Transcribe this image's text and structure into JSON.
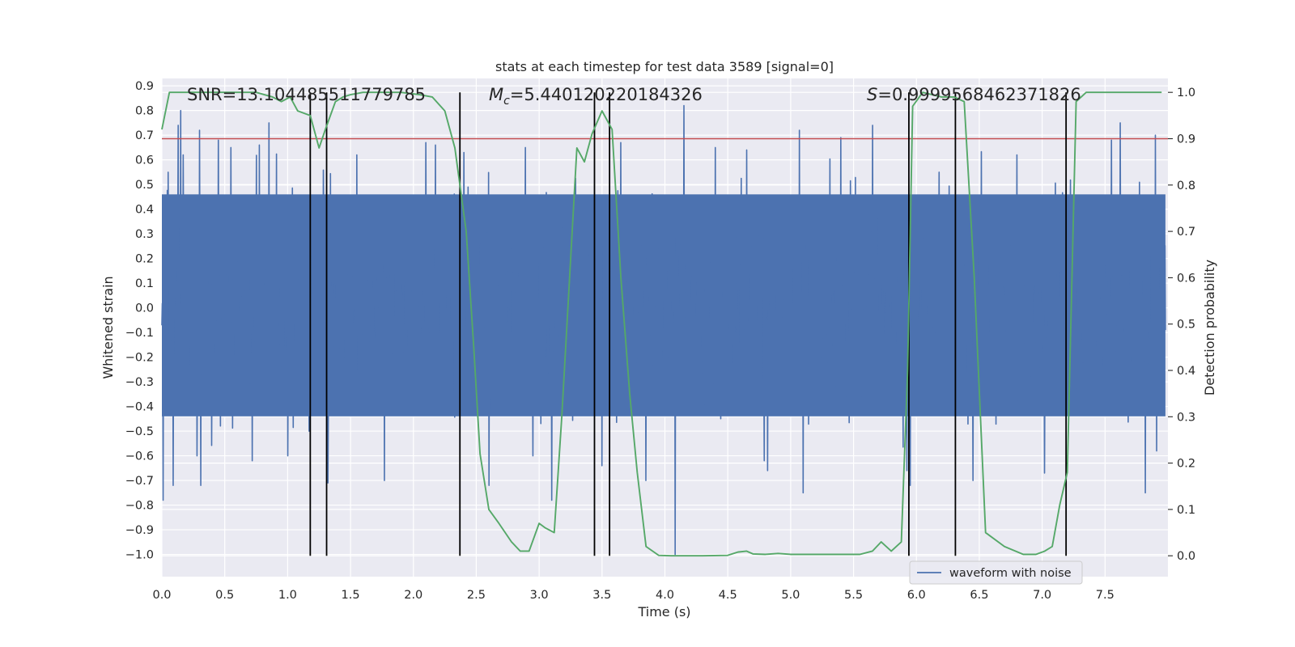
{
  "chart_data": {
    "type": "line",
    "title": "stats at each timestep for test data 3589 [signal=0]",
    "xlabel": "Time (s)",
    "ylabel": "Whitened strain",
    "y2label": "Detection probability",
    "xlim": [
      0.0,
      8.0
    ],
    "ylim": [
      -1.09,
      0.93
    ],
    "y2lim": [
      -0.045,
      1.03
    ],
    "xticks": [
      "0.0",
      "0.5",
      "1.0",
      "1.5",
      "2.0",
      "2.5",
      "3.0",
      "3.5",
      "4.0",
      "4.5",
      "5.0",
      "5.5",
      "6.0",
      "6.5",
      "7.0",
      "7.5"
    ],
    "yticks": [
      "0.9",
      "0.8",
      "0.7",
      "0.6",
      "0.5",
      "0.4",
      "0.3",
      "0.2",
      "0.1",
      "0.0",
      "−0.1",
      "−0.2",
      "−0.3",
      "−0.4",
      "−0.5",
      "−0.6",
      "−0.7",
      "−0.8",
      "−0.9",
      "−1.0"
    ],
    "y2ticks": [
      "1.0",
      "0.9",
      "0.8",
      "0.7",
      "0.6",
      "0.5",
      "0.4",
      "0.3",
      "0.2",
      "0.1",
      "0.0"
    ],
    "annotations": {
      "snr": "SNR=13.104485511779785",
      "mc_prefix": "M",
      "mc_sub": "c",
      "mc_value": "=5.440120220184326",
      "s_prefix": "S",
      "s_value": "=0.9999568462371826"
    },
    "threshold": 0.9,
    "vertical_lines": [
      1.18,
      1.31,
      2.37,
      3.44,
      3.56,
      5.94,
      6.31,
      7.19
    ],
    "waveform": {
      "name": "waveform with noise",
      "color": "#4c72b0",
      "n_samples": 2400,
      "dense_band": [
        -0.44,
        0.46
      ],
      "spikes": [
        {
          "t": 0.01,
          "v": -0.78
        },
        {
          "t": 0.05,
          "v": 0.55
        },
        {
          "t": 0.09,
          "v": -0.72
        },
        {
          "t": 0.13,
          "v": 0.74
        },
        {
          "t": 0.15,
          "v": 0.8
        },
        {
          "t": 0.17,
          "v": 0.62
        },
        {
          "t": 0.28,
          "v": -0.6
        },
        {
          "t": 0.3,
          "v": 0.72
        },
        {
          "t": 0.31,
          "v": -0.72
        },
        {
          "t": 0.45,
          "v": 0.68
        },
        {
          "t": 0.55,
          "v": 0.65
        },
        {
          "t": 0.72,
          "v": -0.62
        },
        {
          "t": 0.85,
          "v": 0.75
        },
        {
          "t": 1.0,
          "v": -0.6
        },
        {
          "t": 1.17,
          "v": -0.5
        },
        {
          "t": 1.32,
          "v": -0.71
        },
        {
          "t": 1.55,
          "v": 0.62
        },
        {
          "t": 1.77,
          "v": -0.7
        },
        {
          "t": 2.1,
          "v": 0.67
        },
        {
          "t": 2.4,
          "v": 0.63
        },
        {
          "t": 2.6,
          "v": -0.72
        },
        {
          "t": 2.89,
          "v": 0.65
        },
        {
          "t": 2.95,
          "v": -0.6
        },
        {
          "t": 3.1,
          "v": -0.78
        },
        {
          "t": 3.5,
          "v": -0.64
        },
        {
          "t": 3.65,
          "v": 0.67
        },
        {
          "t": 3.85,
          "v": -0.7
        },
        {
          "t": 4.08,
          "v": -1.0
        },
        {
          "t": 4.15,
          "v": 0.82
        },
        {
          "t": 4.4,
          "v": 0.65
        },
        {
          "t": 4.65,
          "v": 0.64
        },
        {
          "t": 4.79,
          "v": -0.62
        },
        {
          "t": 5.07,
          "v": 0.72
        },
        {
          "t": 5.1,
          "v": -0.75
        },
        {
          "t": 5.4,
          "v": 0.69
        },
        {
          "t": 5.65,
          "v": 0.74
        },
        {
          "t": 5.95,
          "v": -0.72
        },
        {
          "t": 6.18,
          "v": 0.55
        },
        {
          "t": 6.45,
          "v": -0.7
        },
        {
          "t": 6.8,
          "v": 0.62
        },
        {
          "t": 7.02,
          "v": -0.67
        },
        {
          "t": 7.55,
          "v": 0.68
        },
        {
          "t": 7.62,
          "v": 0.75
        },
        {
          "t": 7.82,
          "v": -0.75
        },
        {
          "t": 7.9,
          "v": 0.7
        }
      ]
    },
    "probability": {
      "color": "#55a868",
      "x": [
        0.0,
        0.06,
        0.2,
        0.4,
        0.6,
        0.75,
        0.88,
        0.95,
        1.02,
        1.08,
        1.18,
        1.25,
        1.3,
        1.38,
        1.44,
        1.5,
        1.6,
        1.75,
        1.9,
        2.05,
        2.15,
        2.25,
        2.33,
        2.42,
        2.48,
        2.53,
        2.6,
        2.68,
        2.78,
        2.85,
        2.92,
        3.0,
        3.05,
        3.12,
        3.18,
        3.3,
        3.36,
        3.42,
        3.5,
        3.58,
        3.65,
        3.72,
        3.78,
        3.85,
        3.95,
        4.05,
        4.3,
        4.5,
        4.58,
        4.65,
        4.7,
        4.8,
        4.9,
        5.0,
        5.2,
        5.55,
        5.65,
        5.72,
        5.8,
        5.88,
        5.93,
        5.97,
        6.05,
        6.2,
        6.3,
        6.38,
        6.46,
        6.55,
        6.7,
        6.85,
        6.95,
        7.02,
        7.08,
        7.14,
        7.2,
        7.27,
        7.35,
        7.6,
        7.8,
        7.95
      ],
      "y": [
        0.92,
        1.0,
        1.0,
        1.0,
        1.0,
        1.0,
        0.99,
        0.98,
        0.99,
        0.96,
        0.95,
        0.88,
        0.92,
        0.98,
        0.99,
        0.995,
        1.0,
        1.0,
        1.0,
        0.995,
        0.99,
        0.96,
        0.88,
        0.7,
        0.45,
        0.22,
        0.1,
        0.07,
        0.03,
        0.01,
        0.01,
        0.07,
        0.06,
        0.05,
        0.3,
        0.88,
        0.85,
        0.91,
        0.96,
        0.92,
        0.6,
        0.35,
        0.18,
        0.02,
        0.001,
        0.0,
        0.0,
        0.001,
        0.008,
        0.01,
        0.004,
        0.003,
        0.005,
        0.003,
        0.003,
        0.003,
        0.01,
        0.03,
        0.01,
        0.03,
        0.4,
        0.97,
        1.0,
        0.99,
        0.99,
        0.98,
        0.6,
        0.05,
        0.02,
        0.003,
        0.003,
        0.01,
        0.02,
        0.11,
        0.18,
        0.98,
        1.0,
        1.0,
        1.0,
        1.0
      ]
    },
    "legend": {
      "label": "waveform with noise",
      "position": "lower-right"
    },
    "grid": true
  },
  "colors": {
    "axes_bg": "#eaeaf2",
    "grid": "#ffffff",
    "threshold": "#c44e52",
    "vline": "#000000"
  }
}
